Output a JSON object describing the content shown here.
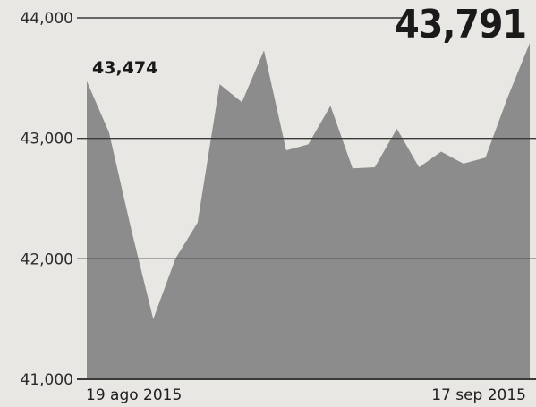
{
  "chart_data": {
    "type": "area",
    "title": "",
    "xlabel": "",
    "ylabel": "",
    "ylim": [
      41000,
      44000
    ],
    "yticks": [
      41000,
      42000,
      43000,
      44000
    ],
    "ytick_labels": [
      "41,000",
      "42,000",
      "43,000",
      "44,000"
    ],
    "x_labels": [
      "19 ago 2015",
      "17 sep 2015"
    ],
    "values": [
      43474,
      43050,
      42250,
      41500,
      42000,
      42300,
      43450,
      43300,
      43730,
      42900,
      42950,
      43270,
      42750,
      42760,
      43080,
      42760,
      42890,
      42790,
      42840,
      43340,
      43791
    ],
    "start_label": "43,474",
    "end_label": "43,791",
    "grid": true,
    "colors": {
      "area": "#8c8c8c",
      "grid": "#3a3a3a",
      "text": "#1a1a1a"
    }
  }
}
